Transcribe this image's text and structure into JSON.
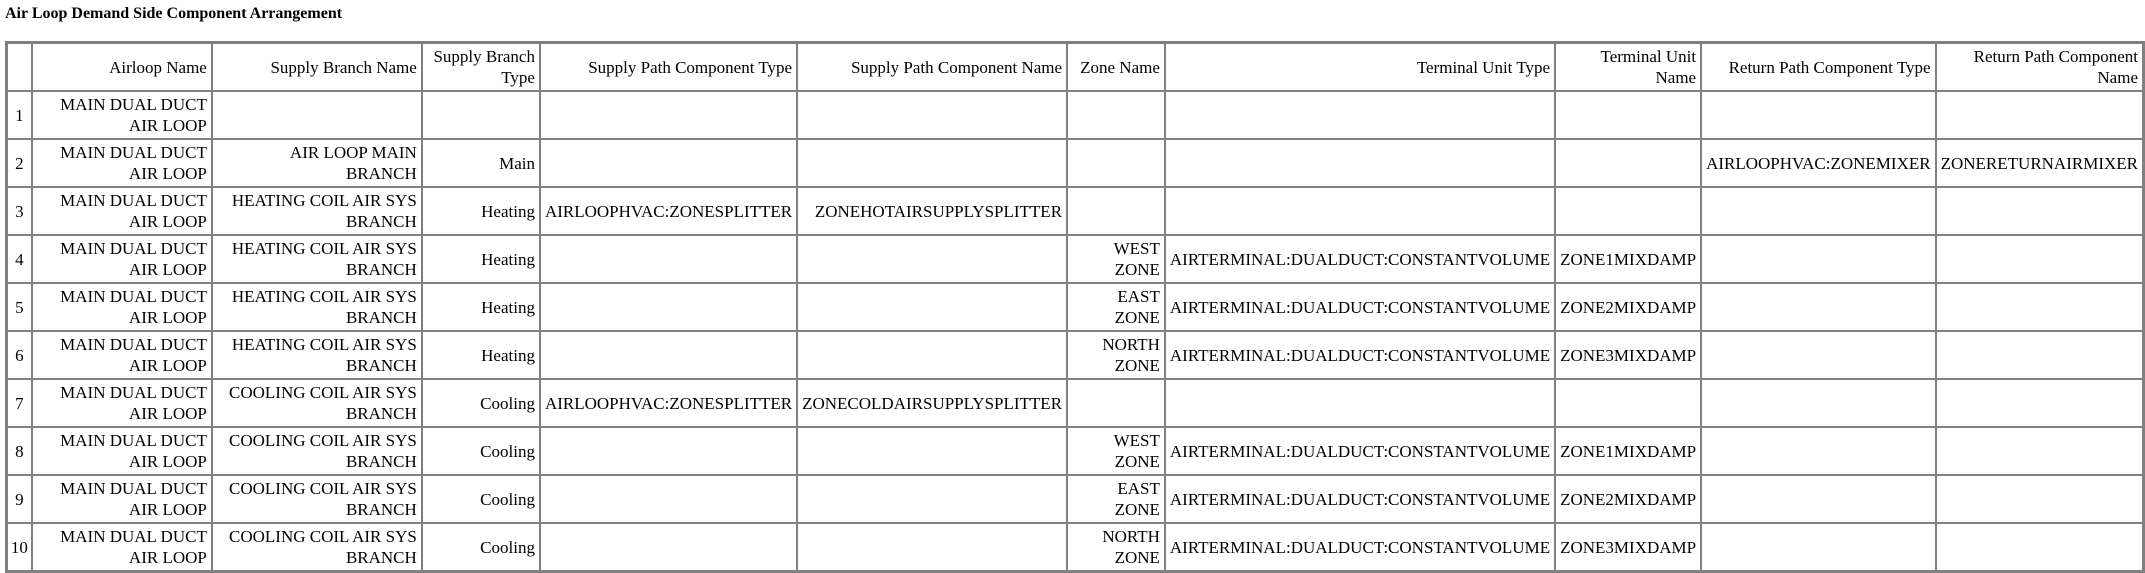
{
  "title": "Air Loop Demand Side Component Arrangement",
  "columns": [
    "",
    "Airloop Name",
    "Supply Branch Name",
    "Supply Branch Type",
    "Supply Path Component Type",
    "Supply Path Component Name",
    "Zone Name",
    "Terminal Unit Type",
    "Terminal Unit Name",
    "Return Path Component Type",
    "Return Path Component Name"
  ],
  "rows": [
    [
      "1",
      "MAIN DUAL DUCT AIR LOOP",
      "",
      "",
      "",
      "",
      "",
      "",
      "",
      "",
      ""
    ],
    [
      "2",
      "MAIN DUAL DUCT AIR LOOP",
      "AIR LOOP MAIN BRANCH",
      "Main",
      "",
      "",
      "",
      "",
      "",
      "AIRLOOPHVAC:ZONEMIXER",
      "ZONERETURNAIRMIXER"
    ],
    [
      "3",
      "MAIN DUAL DUCT AIR LOOP",
      "HEATING COIL AIR SYS BRANCH",
      "Heating",
      "AIRLOOPHVAC:ZONESPLITTER",
      "ZONEHOTAIRSUPPLYSPLITTER",
      "",
      "",
      "",
      "",
      ""
    ],
    [
      "4",
      "MAIN DUAL DUCT AIR LOOP",
      "HEATING COIL AIR SYS BRANCH",
      "Heating",
      "",
      "",
      "WEST ZONE",
      "AIRTERMINAL:DUALDUCT:CONSTANTVOLUME",
      "ZONE1MIXDAMP",
      "",
      ""
    ],
    [
      "5",
      "MAIN DUAL DUCT AIR LOOP",
      "HEATING COIL AIR SYS BRANCH",
      "Heating",
      "",
      "",
      "EAST ZONE",
      "AIRTERMINAL:DUALDUCT:CONSTANTVOLUME",
      "ZONE2MIXDAMP",
      "",
      ""
    ],
    [
      "6",
      "MAIN DUAL DUCT AIR LOOP",
      "HEATING COIL AIR SYS BRANCH",
      "Heating",
      "",
      "",
      "NORTH ZONE",
      "AIRTERMINAL:DUALDUCT:CONSTANTVOLUME",
      "ZONE3MIXDAMP",
      "",
      ""
    ],
    [
      "7",
      "MAIN DUAL DUCT AIR LOOP",
      "COOLING COIL AIR SYS BRANCH",
      "Cooling",
      "AIRLOOPHVAC:ZONESPLITTER",
      "ZONECOLDAIRSUPPLYSPLITTER",
      "",
      "",
      "",
      "",
      ""
    ],
    [
      "8",
      "MAIN DUAL DUCT AIR LOOP",
      "COOLING COIL AIR SYS BRANCH",
      "Cooling",
      "",
      "",
      "WEST ZONE",
      "AIRTERMINAL:DUALDUCT:CONSTANTVOLUME",
      "ZONE1MIXDAMP",
      "",
      ""
    ],
    [
      "9",
      "MAIN DUAL DUCT AIR LOOP",
      "COOLING COIL AIR SYS BRANCH",
      "Cooling",
      "",
      "",
      "EAST ZONE",
      "AIRTERMINAL:DUALDUCT:CONSTANTVOLUME",
      "ZONE2MIXDAMP",
      "",
      ""
    ],
    [
      "10",
      "MAIN DUAL DUCT AIR LOOP",
      "COOLING COIL AIR SYS BRANCH",
      "Cooling",
      "",
      "",
      "NORTH ZONE",
      "AIRTERMINAL:DUALDUCT:CONSTANTVOLUME",
      "ZONE3MIXDAMP",
      "",
      ""
    ]
  ]
}
